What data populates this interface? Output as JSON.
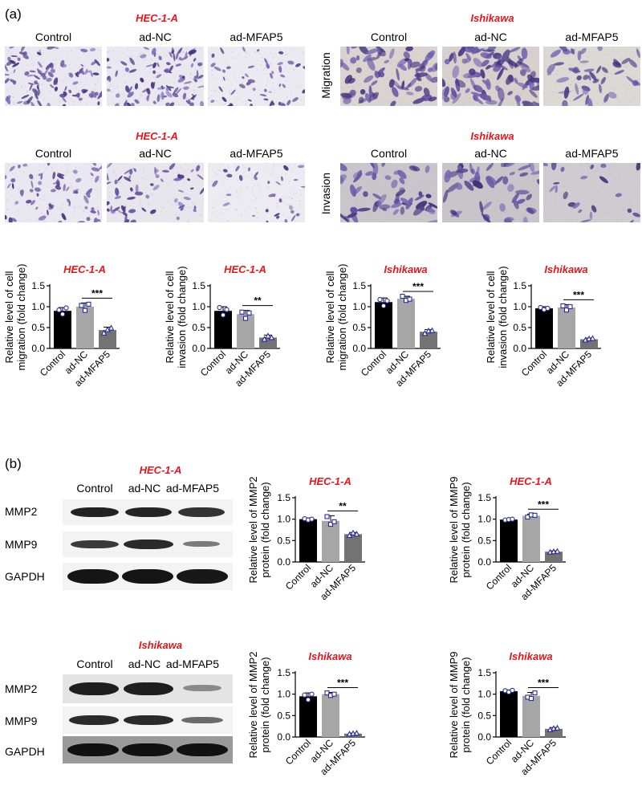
{
  "panel_a": {
    "label": "(a)",
    "migration_row_label": "Migration",
    "invasion_row_label": "Invasion",
    "cell_lines": [
      "HEC-1-A",
      "Ishikawa"
    ],
    "groups": [
      "Control",
      "ad-NC",
      "ad-MFAP5"
    ]
  },
  "panel_b": {
    "label": "(b)",
    "blots": [
      {
        "cell_line": "HEC-1-A",
        "groups": [
          "Control",
          "ad-NC",
          "ad-MFAP5"
        ],
        "rows": [
          "MMP2",
          "MMP9",
          "GAPDH"
        ]
      },
      {
        "cell_line": "Ishikawa",
        "groups": [
          "Control",
          "ad-NC",
          "ad-MFAP5"
        ],
        "rows": [
          "MMP2",
          "MMP9",
          "GAPDH"
        ]
      }
    ]
  },
  "colors": {
    "control": "#000000",
    "ad_nc": "#a6a6a6",
    "ad_mfap5": "#737373",
    "title": "#e8141b",
    "point": "#2b2b9e"
  },
  "chart_data": [
    {
      "type": "bar",
      "title": "HEC-1-A",
      "ylabel": "Relative level of cell migration (fold change)",
      "ylabel_lines": [
        "Relative level of cell",
        "migration (fold change)"
      ],
      "categories": [
        "Control",
        "ad-NC",
        "ad-MFAP5"
      ],
      "values": [
        0.9,
        1.0,
        0.44
      ],
      "errors": [
        0.08,
        0.09,
        0.07
      ],
      "points": [
        [
          0.92,
          0.82,
          0.97
        ],
        [
          1.03,
          0.91,
          1.06
        ],
        [
          0.37,
          0.45,
          0.49
        ]
      ],
      "yticks": [
        "0.0",
        "0.5",
        "1.0",
        "1.5"
      ],
      "ylim": [
        0,
        1.5
      ],
      "significance": {
        "from": 1,
        "to": 2,
        "label": "***"
      }
    },
    {
      "type": "bar",
      "title": "HEC-1-A",
      "ylabel": "Relative level of cell invasion (fold change)",
      "ylabel_lines": [
        "Relative level of cell",
        "invasion (fold change)"
      ],
      "categories": [
        "Control",
        "ad-NC",
        "ad-MFAP5"
      ],
      "values": [
        0.9,
        0.82,
        0.26
      ],
      "errors": [
        0.1,
        0.09,
        0.06
      ],
      "points": [
        [
          0.98,
          0.8,
          0.93
        ],
        [
          0.87,
          0.72,
          0.85
        ],
        [
          0.22,
          0.3,
          0.26
        ]
      ],
      "yticks": [
        "0.0",
        "0.5",
        "1.0",
        "1.5"
      ],
      "ylim": [
        0,
        1.5
      ],
      "significance": {
        "from": 1,
        "to": 2,
        "label": "**"
      }
    },
    {
      "type": "bar",
      "title": "Ishikawa",
      "ylabel": "Relative level of cell migration (fold change)",
      "ylabel_lines": [
        "Relative level of cell",
        "migration (fold change)"
      ],
      "categories": [
        "Control",
        "ad-NC",
        "ad-MFAP5"
      ],
      "values": [
        1.11,
        1.19,
        0.4
      ],
      "errors": [
        0.1,
        0.06,
        0.05
      ],
      "points": [
        [
          1.17,
          1.02,
          1.14
        ],
        [
          1.25,
          1.15,
          1.18
        ],
        [
          0.36,
          0.42,
          0.43
        ]
      ],
      "yticks": [
        "0.0",
        "0.5",
        "1.0",
        "1.5"
      ],
      "ylim": [
        0,
        1.5
      ],
      "significance": {
        "from": 1,
        "to": 2,
        "label": "***"
      }
    },
    {
      "type": "bar",
      "title": "Ishikawa",
      "ylabel": "Relative level of cell invasion (fold change)",
      "ylabel_lines": [
        "Relative level of cell",
        "invasion (fold change)"
      ],
      "categories": [
        "Control",
        "ad-NC",
        "ad-MFAP5"
      ],
      "values": [
        0.96,
        0.98,
        0.22
      ],
      "errors": [
        0.04,
        0.07,
        0.03
      ],
      "points": [
        [
          0.98,
          0.93,
          0.96
        ],
        [
          1.02,
          0.92,
          1.0
        ],
        [
          0.2,
          0.23,
          0.24
        ]
      ],
      "yticks": [
        "0.0",
        "0.5",
        "1.0",
        "1.5"
      ],
      "ylim": [
        0,
        1.5
      ],
      "significance": {
        "from": 1,
        "to": 2,
        "label": "***"
      }
    },
    {
      "type": "bar",
      "title": "HEC-1-A",
      "ylabel": "Relative level of MMP2 protein (fold change)",
      "ylabel_lines": [
        "Relative level of MMP2",
        "protein (fold change)"
      ],
      "categories": [
        "Control",
        "ad-NC",
        "ad-MFAP5"
      ],
      "values": [
        1.0,
        0.96,
        0.65
      ],
      "errors": [
        0.03,
        0.12,
        0.04
      ],
      "points": [
        [
          1.01,
          0.98,
          1.0
        ],
        [
          1.06,
          0.88,
          0.94
        ],
        [
          0.62,
          0.68,
          0.65
        ]
      ],
      "yticks": [
        "0.0",
        "0.5",
        "1.0",
        "1.5"
      ],
      "ylim": [
        0,
        1.5
      ],
      "significance": {
        "from": 1,
        "to": 2,
        "label": "**"
      }
    },
    {
      "type": "bar",
      "title": "HEC-1-A",
      "ylabel": "Relative level of MMP9 protein (fold change)",
      "ylabel_lines": [
        "Relative level of MMP9",
        "protein (fold change)"
      ],
      "categories": [
        "Control",
        "ad-NC",
        "ad-MFAP5"
      ],
      "values": [
        0.99,
        1.08,
        0.24
      ],
      "errors": [
        0.01,
        0.04,
        0.02
      ],
      "points": [
        [
          0.98,
          0.99,
          1.0
        ],
        [
          1.05,
          1.1,
          1.09
        ],
        [
          0.23,
          0.24,
          0.25
        ]
      ],
      "yticks": [
        "0.0",
        "0.5",
        "1.0",
        "1.5"
      ],
      "ylim": [
        0,
        1.5
      ],
      "significance": {
        "from": 1,
        "to": 2,
        "label": "***"
      }
    },
    {
      "type": "bar",
      "title": "Ishikawa",
      "ylabel": "Relative level of MMP2 protein (fold change)",
      "ylabel_lines": [
        "Relative level of MMP2",
        "protein (fold change)"
      ],
      "categories": [
        "Control",
        "ad-NC",
        "ad-MFAP5"
      ],
      "values": [
        0.95,
        1.0,
        0.08
      ],
      "errors": [
        0.08,
        0.04,
        0.01
      ],
      "points": [
        [
          0.98,
          0.87,
          1.0
        ],
        [
          1.03,
          0.97,
          1.0
        ],
        [
          0.07,
          0.08,
          0.09
        ]
      ],
      "yticks": [
        "0.0",
        "0.5",
        "1.0",
        "1.5"
      ],
      "ylim": [
        0,
        1.5
      ],
      "significance": {
        "from": 1,
        "to": 2,
        "label": "***"
      }
    },
    {
      "type": "bar",
      "title": "Ishikawa",
      "ylabel": "Relative level of MMP9 protein (fold change)",
      "ylabel_lines": [
        "Relative level of MMP9",
        "protein (fold change)"
      ],
      "categories": [
        "Control",
        "ad-NC",
        "ad-MFAP5"
      ],
      "values": [
        1.07,
        0.96,
        0.19
      ],
      "errors": [
        0.03,
        0.08,
        0.03
      ],
      "points": [
        [
          1.08,
          1.05,
          1.09
        ],
        [
          0.93,
          0.9,
          1.03
        ],
        [
          0.17,
          0.2,
          0.21
        ]
      ],
      "yticks": [
        "0.0",
        "0.5",
        "1.0",
        "1.5"
      ],
      "ylim": [
        0,
        1.5
      ],
      "significance": {
        "from": 1,
        "to": 2,
        "label": "***"
      }
    }
  ]
}
